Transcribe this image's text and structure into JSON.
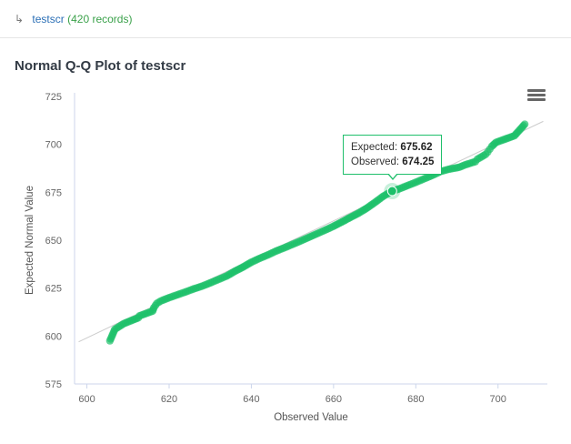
{
  "breadcrumb": {
    "arrow_icon": "return-arrow-icon",
    "dataset": "testscr",
    "records": "(420 records)"
  },
  "chart_title": "Normal Q-Q Plot of testscr",
  "menu_icon": "hamburger-menu-icon",
  "tooltip": {
    "expected_label": "Expected:",
    "expected_value": "675.62",
    "observed_label": "Observed:",
    "observed_value": "674.25"
  },
  "colors": {
    "point": "#1cc06a",
    "reference_line": "#cccccc",
    "tooltip_border": "#1fbf6b"
  },
  "chart_data": {
    "type": "scatter",
    "title": "Normal Q-Q Plot of testscr",
    "xlabel": "Observed Value",
    "ylabel": "Expected Normal Value",
    "xlim": [
      597,
      712
    ],
    "ylim": [
      575,
      725
    ],
    "xticks": [
      600,
      620,
      640,
      660,
      680,
      700
    ],
    "yticks": [
      575,
      600,
      625,
      650,
      675,
      700,
      725
    ],
    "reference_line": [
      [
        598,
        597
      ],
      [
        711,
        712
      ]
    ],
    "grid": false,
    "legend": "none",
    "points": [
      [
        605.6,
        597.5
      ],
      [
        606.8,
        603.5
      ],
      [
        609.0,
        606.5
      ],
      [
        612.5,
        609.5
      ],
      [
        612.8,
        610.5
      ],
      [
        616.0,
        613.0
      ],
      [
        616.3,
        614.8
      ],
      [
        617.0,
        617.0
      ],
      [
        618.0,
        618.3
      ],
      [
        620.0,
        620.0
      ],
      [
        622.0,
        621.5
      ],
      [
        624.0,
        623.0
      ],
      [
        626.0,
        624.6
      ],
      [
        628.0,
        626.0
      ],
      [
        630.0,
        627.7
      ],
      [
        632.0,
        629.5
      ],
      [
        634.0,
        631.3
      ],
      [
        636.0,
        633.8
      ],
      [
        638.0,
        636.0
      ],
      [
        640.0,
        638.5
      ],
      [
        642.0,
        640.5
      ],
      [
        644.0,
        642.3
      ],
      [
        646.0,
        644.3
      ],
      [
        648.0,
        646.0
      ],
      [
        650.0,
        647.8
      ],
      [
        652.0,
        649.6
      ],
      [
        654.0,
        651.5
      ],
      [
        656.0,
        653.4
      ],
      [
        658.0,
        655.3
      ],
      [
        660.0,
        657.3
      ],
      [
        662.0,
        659.5
      ],
      [
        664.0,
        661.8
      ],
      [
        666.0,
        664.0
      ],
      [
        668.0,
        666.6
      ],
      [
        670.0,
        669.6
      ],
      [
        672.0,
        672.8
      ],
      [
        674.25,
        675.62
      ],
      [
        676.0,
        676.8
      ],
      [
        678.0,
        678.5
      ],
      [
        680.0,
        680.2
      ],
      [
        682.0,
        682.0
      ],
      [
        684.0,
        683.8
      ],
      [
        686.0,
        685.8
      ],
      [
        688.0,
        687.0
      ],
      [
        690.5,
        688.0
      ],
      [
        692.0,
        689.3
      ],
      [
        694.5,
        691.0
      ],
      [
        695.0,
        692.3
      ],
      [
        696.0,
        693.5
      ],
      [
        697.0,
        694.8
      ],
      [
        697.5,
        696.0
      ],
      [
        698.0,
        697.5
      ],
      [
        698.5,
        699.0
      ],
      [
        699.5,
        701.0
      ],
      [
        704.0,
        704.5
      ],
      [
        706.5,
        710.5
      ]
    ],
    "highlighted_point": [
      674.25,
      675.62
    ]
  }
}
